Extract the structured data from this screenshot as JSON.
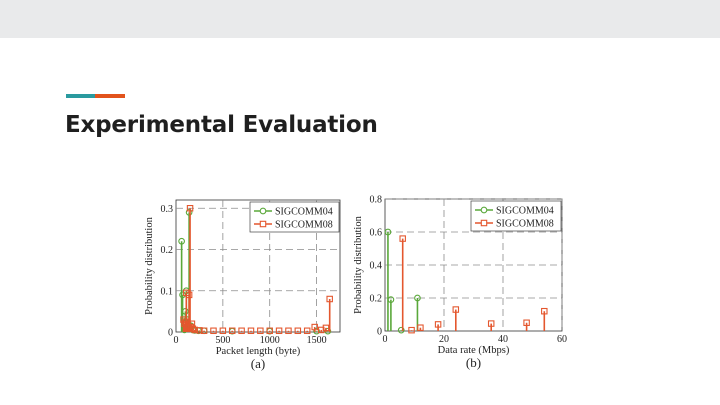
{
  "slide": {
    "title": "Experimental Evaluation"
  },
  "colors": {
    "top_bar": "#e9eaeb",
    "accent_teal": "#2a9a9f",
    "accent_orange": "#e2531c",
    "green_series": "#5aa83a",
    "orange_series": "#e4572e",
    "grid": "#8c8c8c"
  },
  "chart_data": [
    {
      "type": "line",
      "panel_label": "(a)",
      "xlabel": "Packet length (byte)",
      "ylabel": "Probability distribution",
      "xlim": [
        0,
        1750
      ],
      "ylim": [
        0,
        0.32
      ],
      "xticks": [
        0,
        500,
        1000,
        1500
      ],
      "yticks": [
        0,
        0.1,
        0.2,
        0.3
      ],
      "xtick_labels": [
        "0",
        "500",
        "1000",
        "1500"
      ],
      "ytick_labels": [
        "0",
        "0.1",
        "0.2",
        "0.3"
      ],
      "grid": true,
      "legend_position": "top-right",
      "series": [
        {
          "name": "SIGCOMM04",
          "marker": "circle",
          "color": "#5aa83a",
          "x": [
            60,
            70,
            90,
            100,
            110,
            120,
            130,
            140,
            160,
            180,
            200,
            240,
            300,
            600,
            1000,
            1500,
            1620
          ],
          "y": [
            0.22,
            0.09,
            0.005,
            0.05,
            0.1,
            0.03,
            0.02,
            0.29,
            0.015,
            0.005,
            0.004,
            0.003,
            0.003,
            0.002,
            0.002,
            0.002,
            0.002
          ]
        },
        {
          "name": "SIGCOMM08",
          "marker": "square",
          "color": "#e4572e",
          "x": [
            80,
            90,
            100,
            110,
            120,
            130,
            140,
            150,
            160,
            170,
            180,
            200,
            250,
            300,
            400,
            500,
            600,
            700,
            800,
            900,
            1000,
            1100,
            1200,
            1300,
            1400,
            1480,
            1550,
            1600,
            1640
          ],
          "y": [
            0.03,
            0.02,
            0.025,
            0.095,
            0.012,
            0.01,
            0.09,
            0.3,
            0.012,
            0.02,
            0.008,
            0.005,
            0.004,
            0.003,
            0.003,
            0.003,
            0.003,
            0.003,
            0.003,
            0.003,
            0.003,
            0.003,
            0.003,
            0.003,
            0.003,
            0.012,
            0.005,
            0.01,
            0.08
          ]
        }
      ]
    },
    {
      "type": "line",
      "panel_label": "(b)",
      "xlabel": "Data rate (Mbps)",
      "ylabel": "Probability distribution",
      "xlim": [
        0,
        60
      ],
      "ylim": [
        0,
        0.8
      ],
      "xticks": [
        0,
        20,
        40,
        60
      ],
      "yticks": [
        0,
        0.2,
        0.4,
        0.6,
        0.8
      ],
      "xtick_labels": [
        "0",
        "20",
        "40",
        "60"
      ],
      "ytick_labels": [
        "0",
        "0.2",
        "0.4",
        "0.6",
        "0.8"
      ],
      "grid": true,
      "legend_position": "top-right",
      "series": [
        {
          "name": "SIGCOMM04",
          "marker": "circle",
          "color": "#5aa83a",
          "x": [
            1,
            2,
            5.5,
            11
          ],
          "y": [
            0.6,
            0.19,
            0.005,
            0.2
          ]
        },
        {
          "name": "SIGCOMM08",
          "marker": "square",
          "color": "#e4572e",
          "x": [
            6,
            9,
            12,
            18,
            24,
            36,
            48,
            54
          ],
          "y": [
            0.56,
            0.005,
            0.02,
            0.04,
            0.13,
            0.045,
            0.05,
            0.12
          ]
        }
      ]
    }
  ]
}
